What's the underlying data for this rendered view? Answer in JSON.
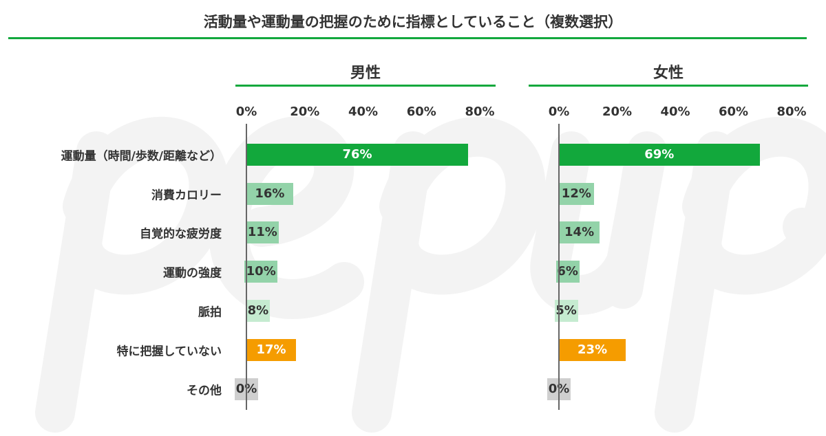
{
  "chart_data": {
    "type": "bar",
    "title": "活動量や運動量の把握のために指標としていること（複数選択）",
    "categories": [
      "運動量（時間/歩数/距離など）",
      "消費カロリー",
      "自覚的な疲労度",
      "運動の強度",
      "脈拍",
      "特に把握していない",
      "その他"
    ],
    "xlim": [
      0,
      80
    ],
    "ticks": [
      "0%",
      "20%",
      "40%",
      "60%",
      "80%"
    ],
    "series": [
      {
        "name": "男性",
        "values": [
          76,
          16,
          11,
          10,
          8,
          17,
          0
        ]
      },
      {
        "name": "女性",
        "values": [
          69,
          12,
          14,
          6,
          5,
          23,
          0
        ]
      }
    ],
    "colors": [
      "#12a83c",
      "#93d3a9",
      "#93d3a9",
      "#93d3a9",
      "#c5ebd0",
      "#f59c00",
      "#cfcfcf"
    ],
    "label_colors": [
      "#ffffff",
      "#333333",
      "#333333",
      "#333333",
      "#333333",
      "#ffffff",
      "#333333"
    ]
  },
  "watermark": "pep up."
}
